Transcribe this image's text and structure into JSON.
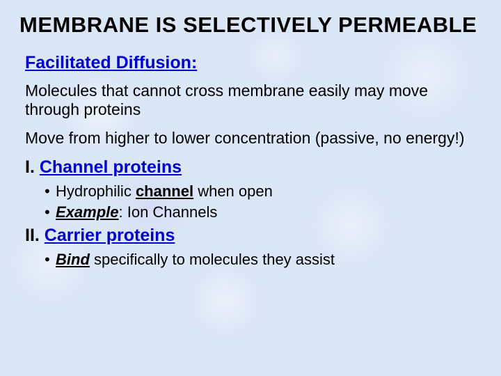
{
  "title": "MEMBRANE IS SELECTIVELY PERMEABLE",
  "subheading": "Facilitated Diffusion:",
  "para1": "Molecules that cannot cross membrane easily may move through proteins",
  "para2": "Move from higher to lower concentration (passive, no energy!)",
  "section1_num": "I.  ",
  "section1_title": "Channel proteins",
  "s1_b1_pre": "Hydrophilic ",
  "s1_b1_u": "channel",
  "s1_b1_post": " when open",
  "s1_b2_b": "Example",
  "s1_b2_post": ": Ion Channels",
  "section2_num": "II.  ",
  "section2_title": "Carrier proteins",
  "s2_b1_b": "Bind",
  "s2_b1_post": " specifically to molecules they assist",
  "bullet_char": "•"
}
